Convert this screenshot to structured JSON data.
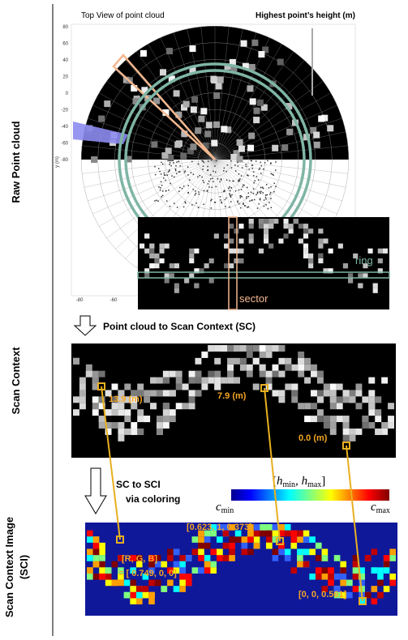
{
  "side_labels": {
    "raw": "Raw Point cloud",
    "sc": "Scan Context",
    "sci_line1": "Scan Context Image",
    "sci_line2": "(SCI)"
  },
  "top_view": {
    "title": "Top View of point cloud",
    "height_label": "Highest point’s height (m)",
    "y_axis_label": "y (m)",
    "y_ticks": [
      "80",
      "60",
      "40",
      "20",
      "0",
      "-20",
      "-40",
      "-60",
      "-80"
    ],
    "x_ticks": [
      "-80",
      "-60"
    ]
  },
  "inset": {
    "ring": "ring",
    "sector": "sector"
  },
  "step1": "Point cloud to Scan Context (SC)",
  "scan_context": {
    "label_a": "13.9 (m)",
    "label_b": "7.9 (m)",
    "label_c": "0.0 (m)"
  },
  "step2": {
    "line1": "SC to SCI",
    "line2": "via coloring"
  },
  "colorbar": {
    "open": "[",
    "h1": "h",
    "sub1": "min",
    "sep": ", ",
    "h2": "h",
    "sub2": "max",
    "close": "]",
    "cmin": "c",
    "cmin_sub": "min",
    "cmax": "c",
    "cmax_sub": "max"
  },
  "sci": {
    "label_a": "[0.623, 1, 0.373]",
    "label_b1": "[R, G, B]",
    "label_b2": "= [ 0.749, 0, 0]",
    "label_c": "[0, 0, 0.561]"
  }
}
